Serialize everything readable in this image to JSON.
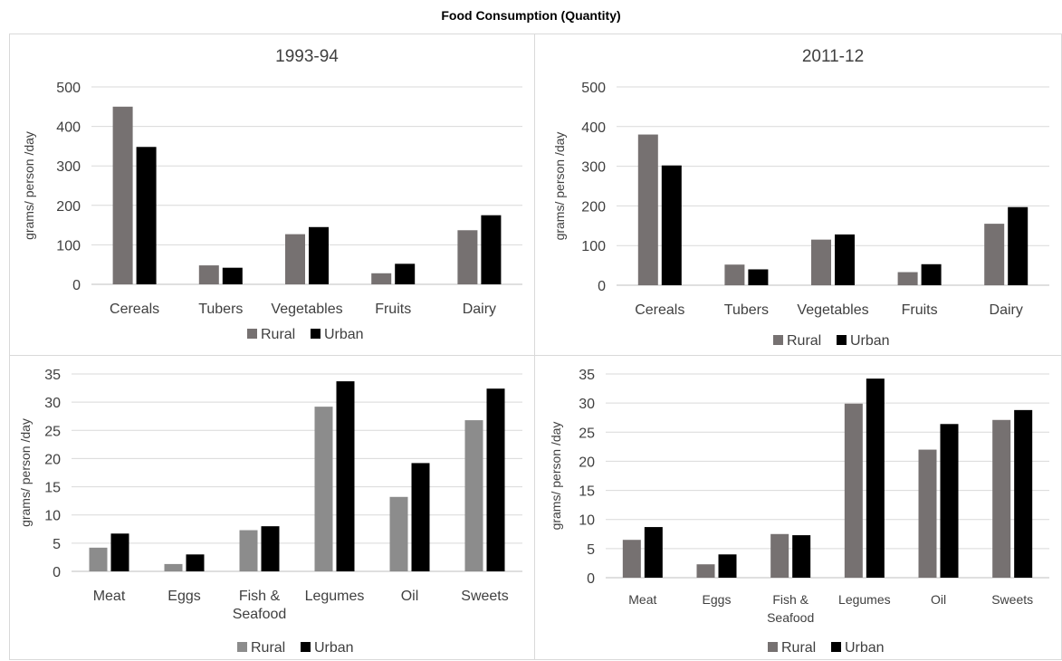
{
  "title": "Food Consumption (Quantity)",
  "colors": {
    "rural_dark": "#767171",
    "rural_light": "#8c8c8c",
    "urban": "#000000"
  },
  "chart_data": [
    {
      "type": "bar",
      "title": "1993-94",
      "ylabel": "grams/ person /day",
      "ylim": [
        0,
        500
      ],
      "yticks": [
        0,
        100,
        200,
        300,
        400,
        500
      ],
      "categories": [
        "Cereals",
        "Tubers",
        "Vegetables",
        "Fruits",
        "Dairy"
      ],
      "series": [
        {
          "name": "Rural",
          "values": [
            450,
            48,
            127,
            28,
            137
          ]
        },
        {
          "name": "Urban",
          "values": [
            348,
            42,
            145,
            52,
            175
          ]
        }
      ],
      "legend": "bottom",
      "grid": true
    },
    {
      "type": "bar",
      "title": "2011-12",
      "ylabel": "grams/ person /day",
      "ylim": [
        0,
        500
      ],
      "yticks": [
        0,
        100,
        200,
        300,
        400,
        500
      ],
      "categories": [
        "Cereals",
        "Tubers",
        "Vegetables",
        "Fruits",
        "Dairy"
      ],
      "series": [
        {
          "name": "Rural",
          "values": [
            380,
            52,
            115,
            33,
            155
          ]
        },
        {
          "name": "Urban",
          "values": [
            302,
            40,
            128,
            53,
            197
          ]
        }
      ],
      "legend": "bottom",
      "grid": true
    },
    {
      "type": "bar",
      "title": "",
      "ylabel": "grams/ person /day",
      "ylim": [
        0,
        35
      ],
      "yticks": [
        0,
        5,
        10,
        15,
        20,
        25,
        30,
        35
      ],
      "categories": [
        "Meat",
        "Eggs",
        "Fish & Seafood",
        "Legumes",
        "Oil",
        "Sweets"
      ],
      "series": [
        {
          "name": "Rural",
          "values": [
            4.2,
            1.3,
            7.3,
            29.2,
            13.2,
            26.8
          ]
        },
        {
          "name": "Urban",
          "values": [
            6.7,
            3.0,
            8.0,
            33.7,
            19.2,
            32.4
          ]
        }
      ],
      "legend": "bottom",
      "grid": true
    },
    {
      "type": "bar",
      "title": "",
      "ylabel": "grams/ person /day",
      "ylim": [
        0,
        35
      ],
      "yticks": [
        0,
        5,
        10,
        15,
        20,
        25,
        30,
        35
      ],
      "categories": [
        "Meat",
        "Eggs",
        "Fish & Seafood",
        "Legumes",
        "Oil",
        "Sweets"
      ],
      "series": [
        {
          "name": "Rural",
          "values": [
            6.5,
            2.3,
            7.5,
            29.9,
            22.0,
            27.1
          ]
        },
        {
          "name": "Urban",
          "values": [
            8.7,
            4.0,
            7.3,
            34.2,
            26.4,
            28.8
          ]
        }
      ],
      "legend": "bottom",
      "grid": true
    }
  ]
}
